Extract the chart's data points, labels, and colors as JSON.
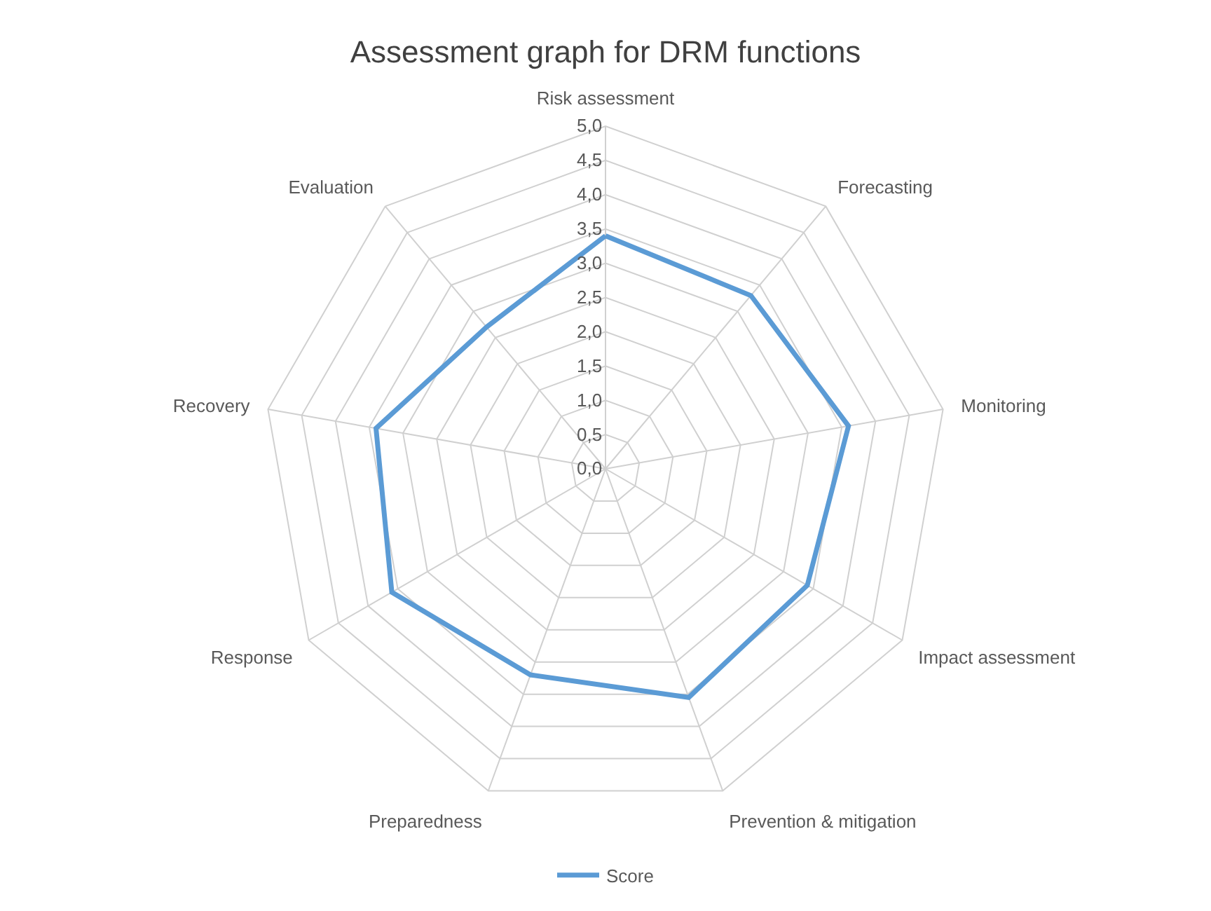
{
  "chart_data": {
    "type": "radar",
    "title": "Assessment graph for DRM functions",
    "categories": [
      "Risk assessment",
      "Forecasting",
      "Monitoring",
      "Impact assessment",
      "Prevention & mitigation",
      "Preparedness",
      "Response",
      "Recovery",
      "Evaluation"
    ],
    "series": [
      {
        "name": "Score",
        "color": "#5b9bd5",
        "values": [
          3.4,
          3.3,
          3.6,
          3.4,
          3.55,
          3.2,
          3.6,
          3.4,
          2.7
        ]
      }
    ],
    "ylim": [
      0,
      5
    ],
    "yticks": [
      {
        "value": 0,
        "label": "0,0"
      },
      {
        "value": 0.5,
        "label": "0,5"
      },
      {
        "value": 1,
        "label": "1,0"
      },
      {
        "value": 1.5,
        "label": "1,5"
      },
      {
        "value": 2,
        "label": "2,0"
      },
      {
        "value": 2.5,
        "label": "2,5"
      },
      {
        "value": 3,
        "label": "3,0"
      },
      {
        "value": 3.5,
        "label": "3,5"
      },
      {
        "value": 4,
        "label": "4,0"
      },
      {
        "value": 4.5,
        "label": "4,5"
      },
      {
        "value": 5,
        "label": "5,0"
      }
    ],
    "grid": true,
    "legend": "bottom",
    "marker": "none",
    "line_style": "solid"
  }
}
